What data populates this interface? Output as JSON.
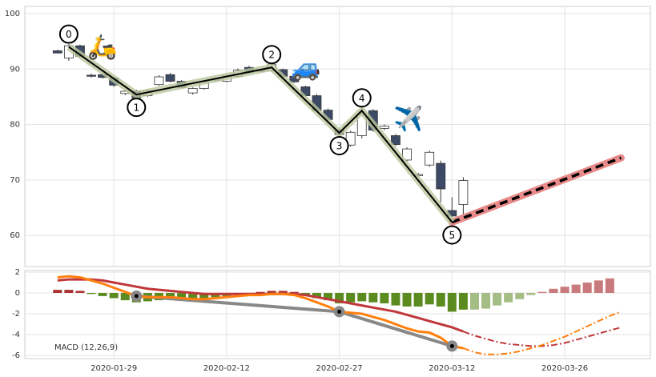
{
  "chart_data": [
    {
      "type": "candlestick",
      "x": [
        0,
        1,
        2,
        3,
        4,
        5,
        6,
        7,
        8,
        9,
        10,
        11,
        12,
        13,
        14,
        15,
        16,
        17,
        18,
        19,
        20,
        21,
        22,
        23,
        24,
        25,
        26,
        27,
        28,
        29,
        30,
        31,
        32,
        33,
        34,
        35,
        36
      ],
      "open": [
        93.3,
        92.0,
        94.2,
        88.9,
        89.0,
        88.4,
        85.6,
        86.0,
        85.2,
        87.2,
        89.0,
        87.8,
        85.7,
        86.5,
        88.0,
        87.8,
        88.7,
        90.3,
        89.9,
        89.7,
        89.9,
        88.7,
        86.8,
        85.2,
        82.6,
        79.0,
        76.3,
        78.0,
        82.5,
        79.3,
        78.0,
        73.6,
        70.8,
        72.7,
        73.0,
        64.5,
        65.6
      ],
      "high": [
        93.5,
        94.5,
        94.4,
        89.2,
        89.3,
        88.6,
        86.3,
        86.3,
        86.4,
        88.9,
        89.3,
        88.0,
        86.7,
        87.9,
        88.3,
        89.0,
        90.1,
        90.6,
        90.1,
        91.0,
        90.1,
        88.9,
        87.0,
        85.5,
        82.9,
        79.3,
        78.9,
        83.5,
        82.8,
        80.0,
        78.3,
        75.9,
        71.3,
        75.3,
        73.5,
        66.9,
        70.5
      ],
      "low": [
        92.8,
        91.5,
        92.0,
        88.5,
        88.3,
        86.8,
        85.3,
        84.5,
        85.0,
        87.0,
        87.6,
        86.5,
        85.4,
        86.3,
        87.8,
        87.6,
        88.5,
        89.2,
        89.4,
        89.5,
        88.5,
        87.5,
        85.0,
        82.3,
        80.6,
        78.0,
        76.0,
        77.5,
        78.7,
        79.0,
        76.1,
        73.3,
        70.5,
        72.4,
        66.0,
        62.2,
        62.5
      ],
      "close": [
        92.9,
        94.2,
        92.3,
        88.7,
        88.5,
        87.1,
        86.0,
        84.8,
        86.1,
        88.6,
        87.8,
        86.7,
        86.5,
        87.7,
        88.2,
        88.8,
        89.8,
        89.4,
        89.6,
        90.8,
        88.7,
        87.7,
        85.2,
        82.5,
        80.9,
        78.2,
        78.6,
        81.9,
        79.0,
        79.7,
        76.4,
        75.6,
        71.0,
        75.0,
        68.4,
        63.5,
        69.9
      ],
      "up_color": "#ffffff",
      "down_color": "#3d4a66",
      "ylim": [
        54.4,
        101.3
      ],
      "yticks": [
        60,
        70,
        80,
        90,
        100
      ],
      "grid": true,
      "wave": {
        "x": [
          1,
          7,
          19,
          25,
          27,
          35
        ],
        "values": [
          94.0,
          85.4,
          90.3,
          78.5,
          82.5,
          62.4
        ],
        "labels": [
          "0",
          "1",
          "2",
          "3",
          "4",
          "5"
        ],
        "color": "#000000",
        "band_color": "#b9c79c"
      },
      "projection": {
        "x": [
          35,
          50
        ],
        "values": [
          62.4,
          74.0
        ],
        "color": "#000000",
        "band_color": "#e88a8a"
      }
    },
    {
      "type": "macd",
      "label": "MACD (12,26,9)",
      "x": [
        0,
        1,
        2,
        3,
        4,
        5,
        6,
        7,
        8,
        9,
        10,
        11,
        12,
        13,
        14,
        15,
        16,
        17,
        18,
        19,
        20,
        21,
        22,
        23,
        24,
        25,
        26,
        27,
        28,
        29,
        30,
        31,
        32,
        33,
        34,
        35,
        36,
        37,
        38,
        39,
        40,
        41,
        42,
        43,
        44,
        45,
        46,
        47,
        48,
        49,
        50
      ],
      "macd": {
        "color": "#ff7f0e",
        "values": [
          1.5,
          1.6,
          1.5,
          1.2,
          0.9,
          0.5,
          0.1,
          -0.3,
          -0.4,
          -0.4,
          -0.4,
          -0.5,
          -0.6,
          -0.6,
          -0.5,
          -0.4,
          -0.3,
          -0.2,
          -0.2,
          -0.1,
          -0.1,
          -0.2,
          -0.5,
          -0.9,
          -1.3,
          -1.8,
          -1.9,
          -2.0,
          -2.3,
          -2.6,
          -3.0,
          -3.4,
          -3.7,
          -3.8,
          -4.3,
          -5.1,
          -5.3,
          null,
          null,
          null,
          null,
          null,
          null,
          null,
          null,
          null,
          null,
          null,
          null,
          null,
          null
        ]
      },
      "macd_forecast": {
        "color": "#ff7f0e",
        "values": [
          null,
          null,
          null,
          null,
          null,
          null,
          null,
          null,
          null,
          null,
          null,
          null,
          null,
          null,
          null,
          null,
          null,
          null,
          null,
          null,
          null,
          null,
          null,
          null,
          null,
          null,
          null,
          null,
          null,
          null,
          null,
          null,
          null,
          null,
          null,
          null,
          -5.3,
          -5.7,
          -5.9,
          -5.9,
          -5.8,
          -5.6,
          -5.3,
          -5.0,
          -4.6,
          -4.2,
          -3.7,
          -3.2,
          -2.7,
          -2.2,
          -1.8
        ]
      },
      "signal": {
        "color": "#c0373a",
        "values": [
          1.2,
          1.3,
          1.3,
          1.3,
          1.2,
          1.0,
          0.8,
          0.6,
          0.4,
          0.3,
          0.2,
          0.1,
          0.0,
          -0.1,
          -0.1,
          -0.1,
          -0.1,
          -0.1,
          -0.1,
          -0.1,
          -0.1,
          -0.1,
          -0.2,
          -0.4,
          -0.6,
          -0.8,
          -1.0,
          -1.2,
          -1.4,
          -1.6,
          -1.8,
          -2.1,
          -2.4,
          -2.7,
          -3.0,
          -3.3,
          -3.7,
          null,
          null,
          null,
          null,
          null,
          null,
          null,
          null,
          null,
          null,
          null,
          null,
          null,
          null
        ]
      },
      "signal_forecast": {
        "color": "#c0373a",
        "values": [
          null,
          null,
          null,
          null,
          null,
          null,
          null,
          null,
          null,
          null,
          null,
          null,
          null,
          null,
          null,
          null,
          null,
          null,
          null,
          null,
          null,
          null,
          null,
          null,
          null,
          null,
          null,
          null,
          null,
          null,
          null,
          null,
          null,
          null,
          null,
          null,
          -3.7,
          -4.1,
          -4.4,
          -4.7,
          -4.9,
          -5.0,
          -5.1,
          -5.1,
          -5.0,
          -4.8,
          -4.5,
          -4.2,
          -3.9,
          -3.6,
          -3.3
        ]
      },
      "histogram": {
        "positive_color": "#a93232",
        "negative_color": "#5b8a1f",
        "values": [
          0.3,
          0.3,
          0.2,
          -0.1,
          -0.3,
          -0.5,
          -0.7,
          -0.9,
          -0.8,
          -0.7,
          -0.6,
          -0.6,
          -0.6,
          -0.5,
          -0.4,
          -0.3,
          -0.2,
          -0.1,
          0.1,
          0.2,
          0.2,
          0.1,
          -0.2,
          -0.5,
          -0.7,
          -1.0,
          -0.9,
          -0.8,
          -0.9,
          -1.0,
          -1.2,
          -1.3,
          -1.3,
          -1.1,
          -1.3,
          -1.8,
          -1.6,
          null,
          null,
          null,
          null,
          null,
          null,
          null,
          null,
          null,
          null,
          null,
          null,
          null,
          null
        ]
      },
      "histogram_forecast": {
        "positive_color": "#c97a7c",
        "negative_color": "#a3bd84",
        "values": [
          null,
          null,
          null,
          null,
          null,
          null,
          null,
          null,
          null,
          null,
          null,
          null,
          null,
          null,
          null,
          null,
          null,
          null,
          null,
          null,
          null,
          null,
          null,
          null,
          null,
          null,
          null,
          null,
          null,
          null,
          null,
          null,
          null,
          null,
          null,
          null,
          null,
          -1.6,
          -1.5,
          -1.2,
          -0.9,
          -0.6,
          -0.2,
          0.1,
          0.4,
          0.6,
          0.8,
          1.0,
          1.2,
          1.4,
          null
        ]
      },
      "wave": {
        "x": [
          7,
          25,
          35
        ],
        "values": [
          -0.3,
          -1.8,
          -5.1
        ],
        "color": "#888888"
      },
      "ylim": [
        -6.3,
        2.15
      ],
      "yticks": [
        -6,
        -4,
        -2,
        0,
        2
      ],
      "grid": true,
      "xlim": [
        -2.9,
        52.6
      ],
      "xticks": [
        {
          "value": 5,
          "label": "2020-01-29"
        },
        {
          "value": 15,
          "label": "2020-02-12"
        },
        {
          "value": 25,
          "label": "2020-02-27"
        },
        {
          "value": 35,
          "label": "2020-03-12"
        },
        {
          "value": 45,
          "label": "2020-03-26"
        }
      ]
    }
  ]
}
